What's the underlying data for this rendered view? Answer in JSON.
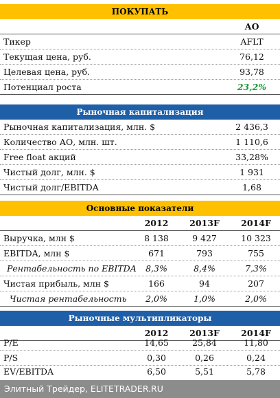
{
  "recommendation": "ПОКУПАТЬ",
  "quote": {
    "column_header": "АО",
    "rows": [
      {
        "label": "Тикер",
        "value": "AFLT"
      },
      {
        "label": "Текущая цена, руб.",
        "value": "76,12"
      },
      {
        "label": "Целевая цена, руб.",
        "value": "93,78"
      },
      {
        "label": "Потенциал роста",
        "value": "23,2%"
      }
    ]
  },
  "market_cap": {
    "title": "Рыночная капитализация",
    "rows": [
      {
        "label": "Рыночная капитализация, млн. $",
        "value": "2 436,3"
      },
      {
        "label": "Количество АО, млн. шт.",
        "value": "1 110,6"
      },
      {
        "label": "Free float акций",
        "value": "33,28%"
      },
      {
        "label": "Чистый долг, млн. $",
        "value": "1 931"
      },
      {
        "label": "Чистый долг/EBITDA",
        "value": "1,68"
      }
    ]
  },
  "fundamentals": {
    "title": "Основные показатели",
    "years": [
      "2012",
      "2013F",
      "2014F"
    ],
    "rows": [
      {
        "label": "Выручка, млн $",
        "values": [
          "8 138",
          "9 427",
          "10 323"
        ]
      },
      {
        "label": "EBITDA, млн $",
        "values": [
          "671",
          "793",
          "755"
        ]
      },
      {
        "label": "Рентабельность по EBITDA",
        "values": [
          "8,3%",
          "8,4%",
          "7,3%"
        ]
      },
      {
        "label": "Чистая прибыль, млн $",
        "values": [
          "166",
          "94",
          "207"
        ]
      },
      {
        "label": "Чистая рентабельность",
        "values": [
          "2,0%",
          "1,0%",
          "2,0%"
        ]
      }
    ]
  },
  "multiples": {
    "title": "Рыночные мультипликаторы",
    "years": [
      "2012",
      "2013F",
      "2014F"
    ],
    "rows": [
      {
        "label": "P/E",
        "values": [
          "14,65",
          "25,84",
          "11,80"
        ]
      },
      {
        "label": "P/S",
        "values": [
          "0,30",
          "0,26",
          "0,24"
        ]
      },
      {
        "label": "EV/EBITDA",
        "values": [
          "6,50",
          "5,51",
          "5,78"
        ]
      }
    ]
  },
  "footer": "Элитный Трейдер, ELITETRADER.RU",
  "colors": {
    "yellow": "#ffc000",
    "blue": "#1f5fa8",
    "green": "#1a9a3a",
    "footer": "#8c8c8c"
  }
}
